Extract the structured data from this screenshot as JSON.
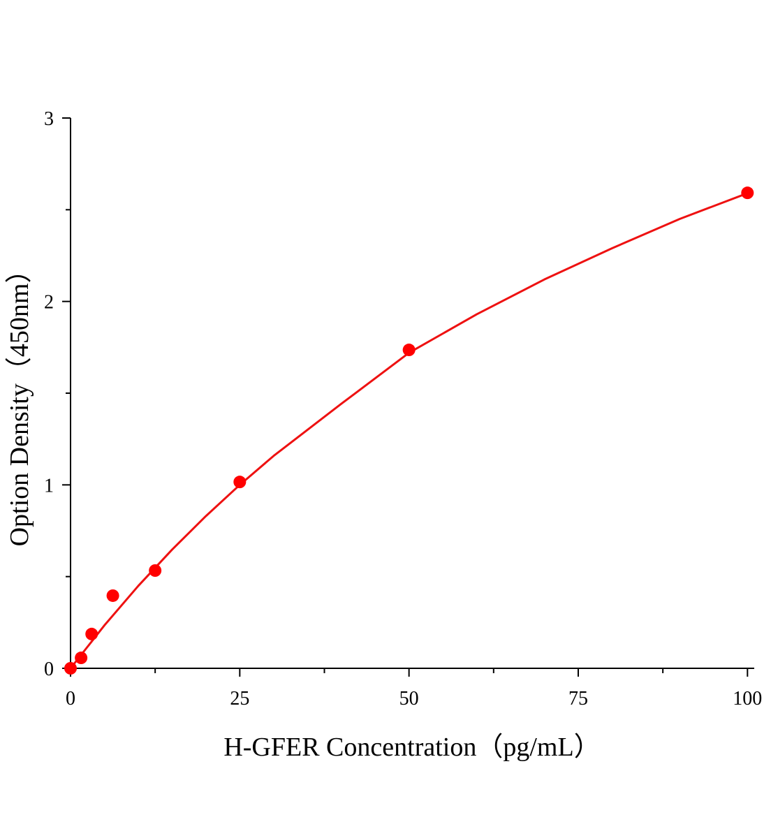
{
  "chart_data": {
    "type": "scatter",
    "x_label": "H-GFER Concentration（pg/mL）",
    "y_label": "Option Density（450nm）",
    "xlim": [
      0,
      101
    ],
    "ylim": [
      0,
      3
    ],
    "xticks": [
      0,
      25,
      50,
      75,
      100
    ],
    "yticks": [
      0,
      1,
      2,
      3
    ],
    "xminorticks": [
      12.5,
      37.5,
      62.5,
      87.5
    ],
    "yminorticks": [
      0.5,
      1.5,
      2.5
    ],
    "series": [
      {
        "type": "scatter",
        "color": "#ff0000",
        "x": [
          0,
          1.56,
          3.12,
          6.25,
          12.5,
          25,
          50,
          100
        ],
        "values": [
          0.0,
          0.057,
          0.187,
          0.396,
          0.533,
          1.016,
          1.736,
          2.592
        ]
      },
      {
        "type": "line",
        "color": "#ee1111",
        "x": [
          0,
          5,
          10,
          15,
          20,
          25,
          30,
          40,
          50,
          60,
          70,
          80,
          90,
          100
        ],
        "values": [
          0,
          0.234,
          0.449,
          0.647,
          0.83,
          1.0,
          1.158,
          1.442,
          1.72,
          1.93,
          2.12,
          2.29,
          2.45,
          2.59
        ]
      }
    ]
  }
}
